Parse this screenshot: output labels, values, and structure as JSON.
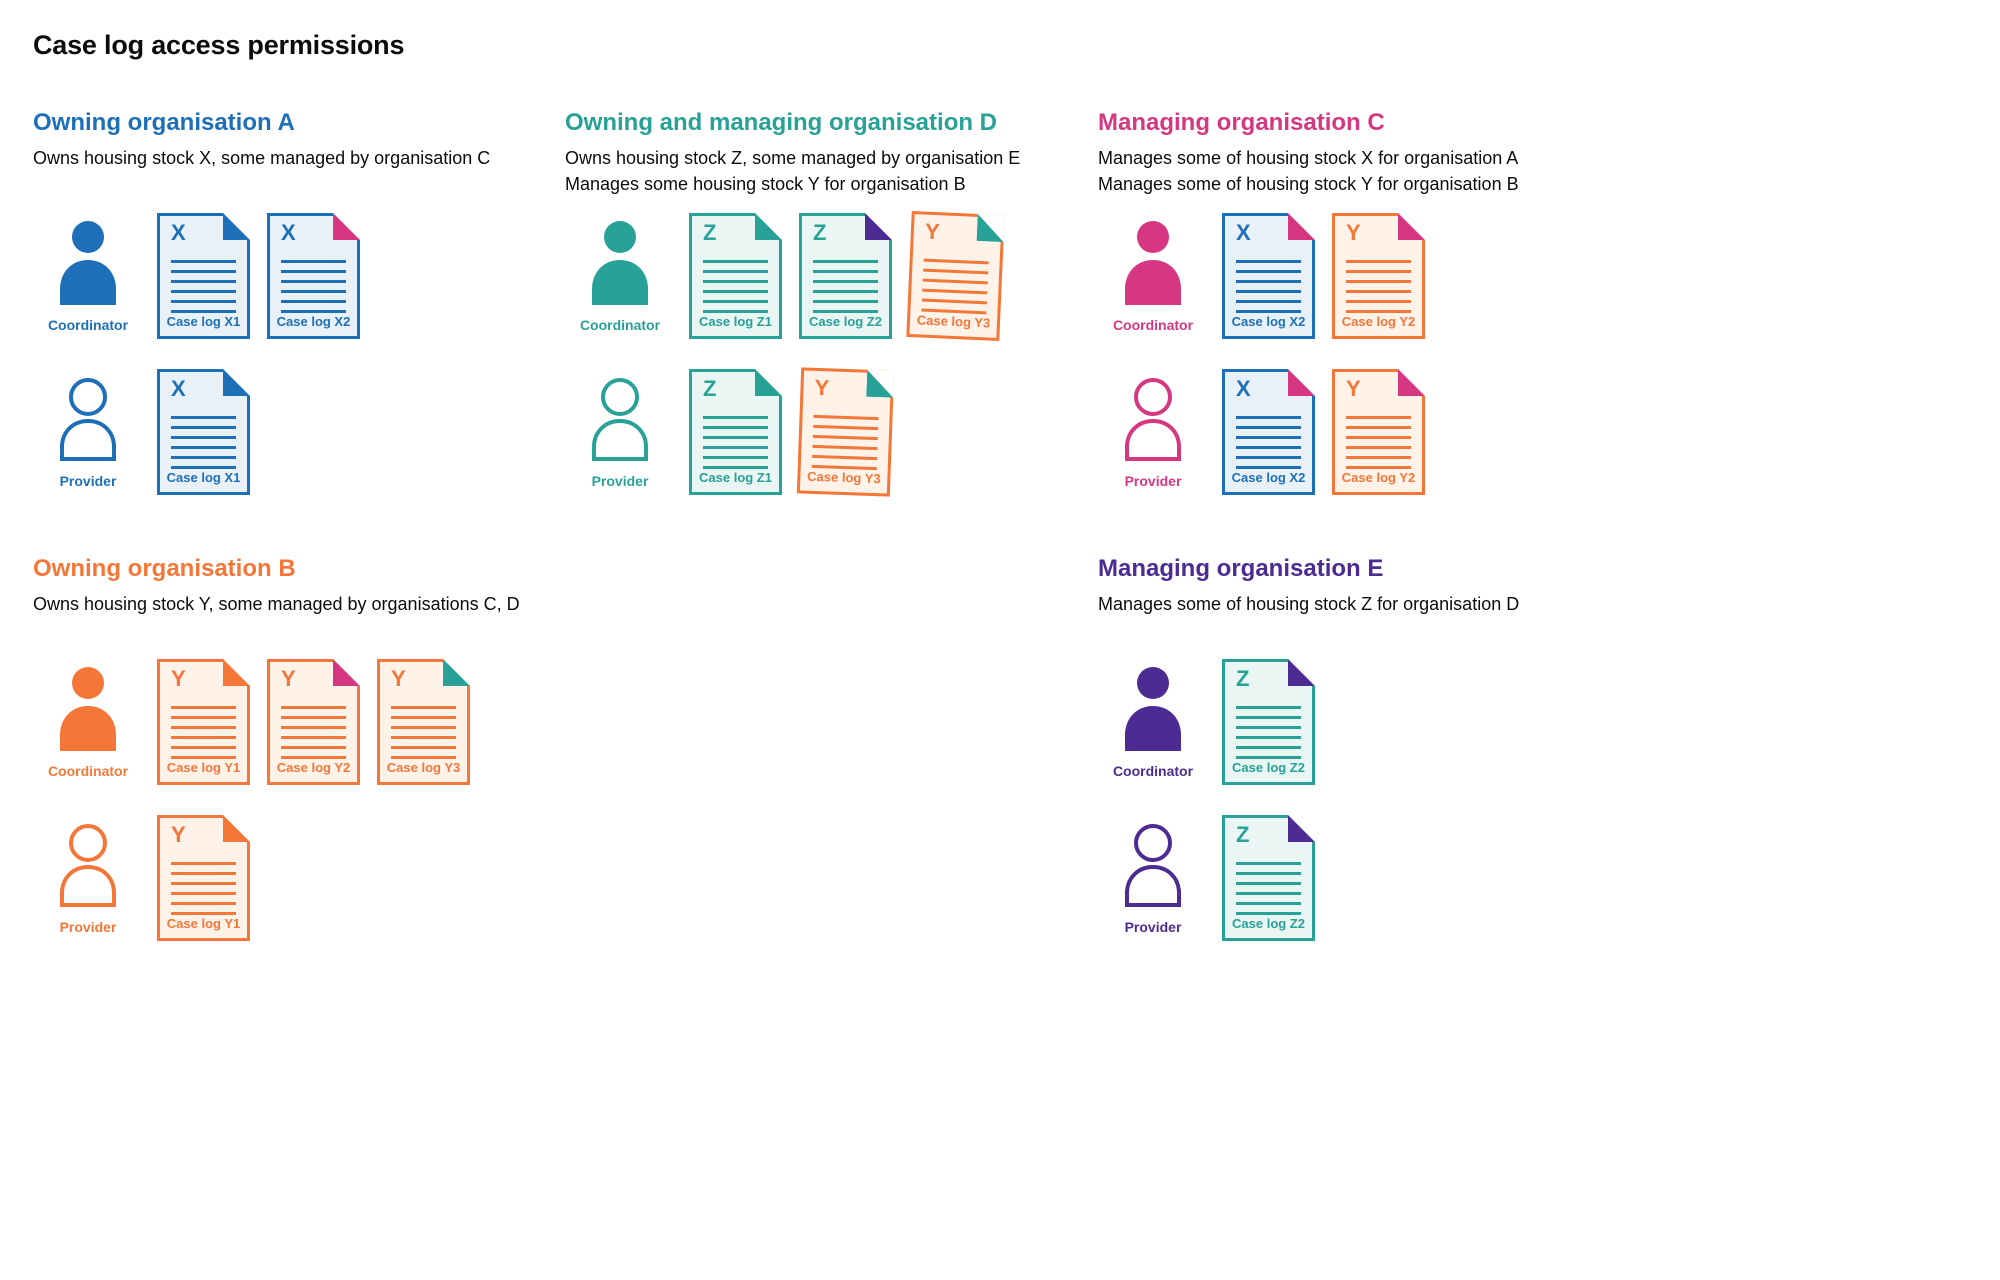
{
  "page_title": "Case log access permissions",
  "colors": {
    "blue": "#1d70b8",
    "teal": "#28a197",
    "pink": "#d53880",
    "orange": "#f47738",
    "purple": "#4c2c92",
    "text": "#0b0c0c"
  },
  "tints": {
    "blue": "#e9f1f8",
    "teal": "#eaf6f4",
    "orange": "#fef2e9"
  },
  "sections": [
    {
      "title": "Owning organisation A",
      "color": "blue",
      "col": 1,
      "row": 1,
      "description": [
        "Owns housing stock X, some managed by organisation C"
      ],
      "rows": [
        {
          "person": {
            "role": "Coordinator",
            "variant": "filled",
            "color": "blue"
          },
          "docs": [
            {
              "letter": "X",
              "label": "Case log X1",
              "doc_color": "blue",
              "fold_color": "blue"
            },
            {
              "letter": "X",
              "label": "Case log X2",
              "doc_color": "blue",
              "fold_color": "pink"
            }
          ]
        },
        {
          "person": {
            "role": "Provider",
            "variant": "outline",
            "color": "blue"
          },
          "docs": [
            {
              "letter": "X",
              "label": "Case log X1",
              "doc_color": "blue",
              "fold_color": "blue"
            }
          ]
        }
      ]
    },
    {
      "title": "Owning and managing organisation D",
      "color": "teal",
      "col": 2,
      "row": 1,
      "description": [
        "Owns housing stock Z, some managed by organisation E",
        "Manages some housing stock Y for organisation B"
      ],
      "rows": [
        {
          "person": {
            "role": "Coordinator",
            "variant": "filled",
            "color": "teal"
          },
          "docs": [
            {
              "letter": "Z",
              "label": "Case log Z1",
              "doc_color": "teal",
              "fold_color": "teal"
            },
            {
              "letter": "Z",
              "label": "Case log Z2",
              "doc_color": "teal",
              "fold_color": "purple"
            },
            {
              "letter": "Y",
              "label": "Case log Y3",
              "doc_color": "orange",
              "fold_color": "teal",
              "tilt": 2.5
            }
          ]
        },
        {
          "person": {
            "role": "Provider",
            "variant": "outline",
            "color": "teal"
          },
          "docs": [
            {
              "letter": "Z",
              "label": "Case log Z1",
              "doc_color": "teal",
              "fold_color": "teal"
            },
            {
              "letter": "Y",
              "label": "Case log Y3",
              "doc_color": "orange",
              "fold_color": "teal",
              "tilt": 2
            }
          ]
        }
      ]
    },
    {
      "title": "Managing organisation C",
      "color": "pink",
      "col": 3,
      "row": 1,
      "description": [
        "Manages some of housing stock X for organisation A",
        "Manages some of housing stock Y for organisation B"
      ],
      "rows": [
        {
          "person": {
            "role": "Coordinator",
            "variant": "filled",
            "color": "pink"
          },
          "docs": [
            {
              "letter": "X",
              "label": "Case log X2",
              "doc_color": "blue",
              "fold_color": "pink"
            },
            {
              "letter": "Y",
              "label": "Case log Y2",
              "doc_color": "orange",
              "fold_color": "pink"
            }
          ]
        },
        {
          "person": {
            "role": "Provider",
            "variant": "outline",
            "color": "pink"
          },
          "docs": [
            {
              "letter": "X",
              "label": "Case log X2",
              "doc_color": "blue",
              "fold_color": "pink"
            },
            {
              "letter": "Y",
              "label": "Case log Y2",
              "doc_color": "orange",
              "fold_color": "pink"
            }
          ]
        }
      ]
    },
    {
      "title": "Owning organisation B",
      "color": "orange",
      "col": 1,
      "row": 2,
      "description": [
        "Owns housing stock Y, some managed by organisations C, D"
      ],
      "rows": [
        {
          "person": {
            "role": "Coordinator",
            "variant": "filled",
            "color": "orange"
          },
          "docs": [
            {
              "letter": "Y",
              "label": "Case log Y1",
              "doc_color": "orange",
              "fold_color": "orange"
            },
            {
              "letter": "Y",
              "label": "Case log Y2",
              "doc_color": "orange",
              "fold_color": "pink"
            },
            {
              "letter": "Y",
              "label": "Case log Y3",
              "doc_color": "orange",
              "fold_color": "teal"
            }
          ]
        },
        {
          "person": {
            "role": "Provider",
            "variant": "outline",
            "color": "orange"
          },
          "docs": [
            {
              "letter": "Y",
              "label": "Case log Y1",
              "doc_color": "orange",
              "fold_color": "orange"
            }
          ]
        }
      ]
    },
    {
      "title": "Managing organisation E",
      "color": "purple",
      "col": 3,
      "row": 2,
      "description": [
        "Manages some of housing stock Z for organisation D"
      ],
      "rows": [
        {
          "person": {
            "role": "Coordinator",
            "variant": "filled",
            "color": "purple"
          },
          "docs": [
            {
              "letter": "Z",
              "label": "Case log Z2",
              "doc_color": "teal",
              "fold_color": "purple"
            }
          ]
        },
        {
          "person": {
            "role": "Provider",
            "variant": "outline",
            "color": "purple"
          },
          "docs": [
            {
              "letter": "Z",
              "label": "Case log Z2",
              "doc_color": "teal",
              "fold_color": "purple"
            }
          ]
        }
      ]
    }
  ]
}
